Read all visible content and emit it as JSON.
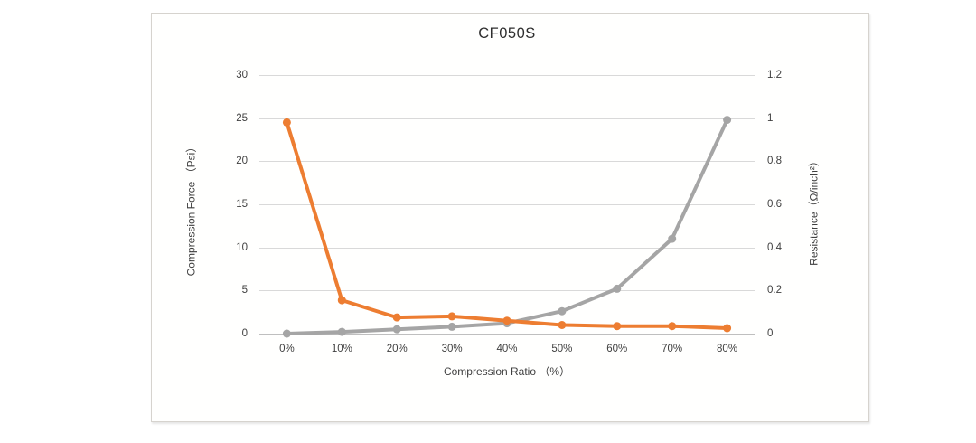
{
  "page": {
    "background": "#ffffff"
  },
  "chart_frame": {
    "border_color": "#d6d3ce"
  },
  "chart_data": {
    "type": "line",
    "title": "CF050S",
    "categories": [
      "0%",
      "10%",
      "20%",
      "30%",
      "40%",
      "50%",
      "60%",
      "70%",
      "80%"
    ],
    "x_axis": {
      "title": "Compression Ratio （%）"
    },
    "y_axis_left": {
      "title": "Compression Force （Psi）",
      "range": [
        0,
        30
      ],
      "tick_step": 5,
      "tick_labels": [
        "0",
        "5",
        "10",
        "15",
        "20",
        "25",
        "30"
      ]
    },
    "y_axis_right": {
      "title": "Resistance（Ω/inch²）",
      "range": [
        0,
        1.2
      ],
      "tick_step": 0.2,
      "tick_labels": [
        "0",
        "0.2",
        "0.4",
        "0.6",
        "0.8",
        "1",
        "1.2"
      ]
    },
    "grid": true,
    "legend": "none",
    "series": [
      {
        "name": "Compression Force (Psi)",
        "axis": "left",
        "color": "#A5A5A5",
        "marker": "circle",
        "values": [
          0,
          0.2,
          0.5,
          0.8,
          1.2,
          2.6,
          5.2,
          11,
          24.8
        ]
      },
      {
        "name": "Resistance (Ω/inch²)",
        "axis": "right",
        "color": "#ED7D31",
        "marker": "circle",
        "values": [
          0.98,
          0.155,
          0.075,
          0.08,
          0.06,
          0.04,
          0.035,
          0.035,
          0.025
        ]
      }
    ],
    "colors": {
      "gridline": "#D9D9D9",
      "axis_line": "#BFBFBF",
      "text": "#404040",
      "title_text": "#2E2E2E"
    }
  }
}
